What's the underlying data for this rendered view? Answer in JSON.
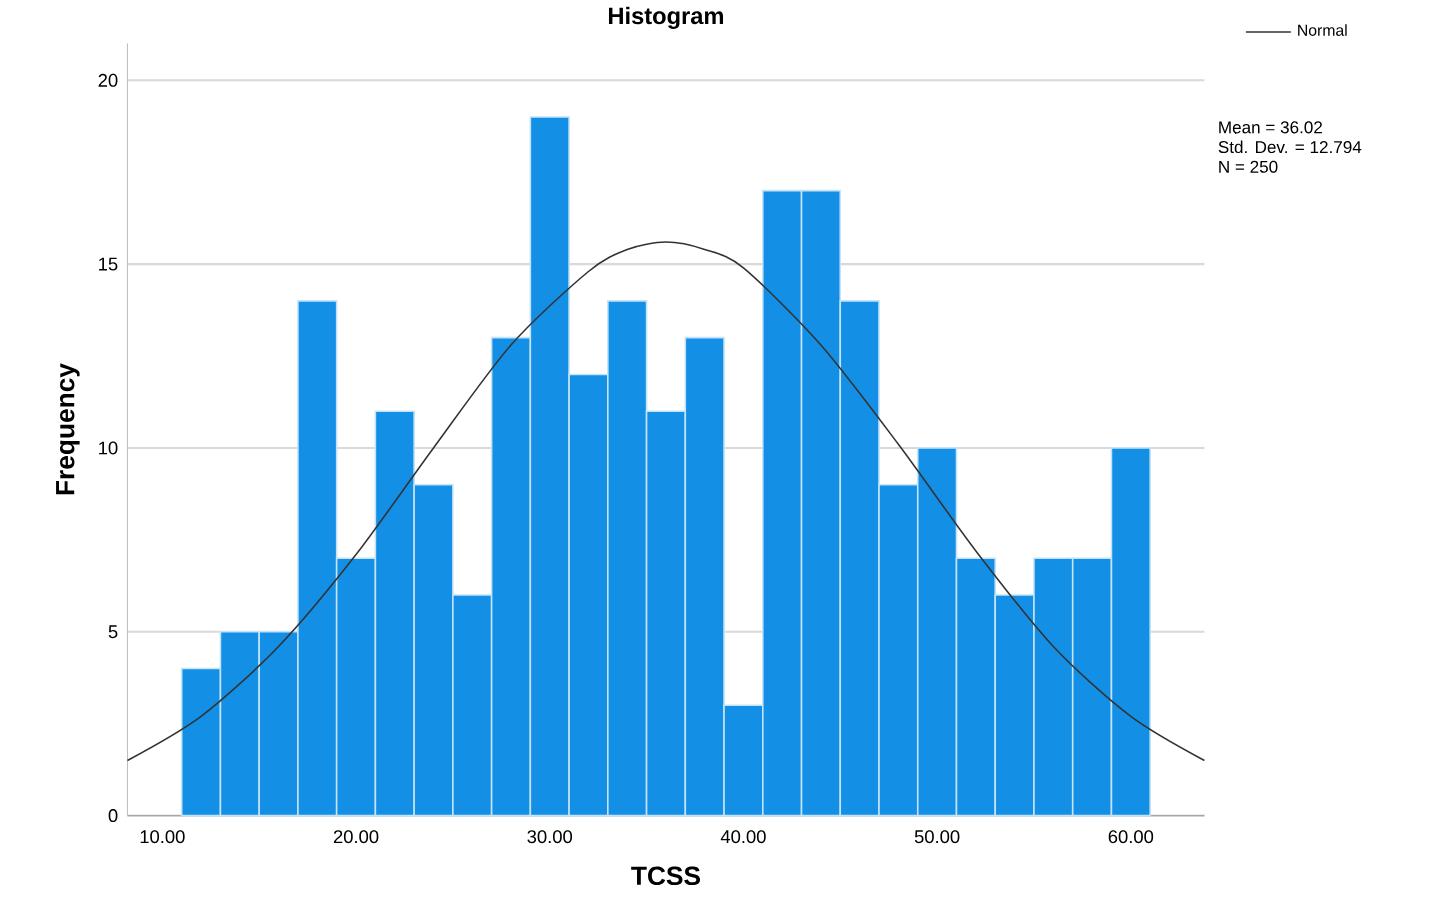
{
  "chart_data": {
    "type": "histogram",
    "title": "Histogram",
    "xlabel": "TCSS",
    "ylabel": "Frequency",
    "bins": [
      11,
      13,
      15,
      17,
      19,
      21,
      23,
      25,
      27,
      29,
      31,
      33,
      35,
      37,
      39,
      41,
      43,
      45,
      47,
      49,
      51,
      53,
      55,
      57,
      59,
      61
    ],
    "values": [
      4,
      5,
      5,
      14,
      7,
      11,
      9,
      6,
      13,
      19,
      12,
      14,
      11,
      13,
      3,
      17,
      17,
      14,
      9,
      10,
      7,
      6,
      7,
      7,
      10
    ],
    "color": "#138fe5",
    "series": [
      {
        "name": "Normal",
        "type": "line",
        "color": "#333333",
        "x": [
          8.2,
          12,
          16,
          20,
          24,
          28,
          32,
          34,
          36,
          38,
          40,
          44,
          48,
          52,
          56,
          60,
          63.8
        ],
        "values": [
          1.5,
          2.7,
          4.6,
          7.1,
          10.0,
          12.8,
          14.8,
          15.4,
          15.6,
          15.4,
          14.9,
          12.8,
          10.1,
          7.2,
          4.6,
          2.7,
          1.5
        ]
      }
    ],
    "xlim": [
      8.2,
      63.8
    ],
    "ylim": [
      0,
      21
    ],
    "xticks": [
      {
        "value": 10,
        "label": "10.00"
      },
      {
        "value": 20,
        "label": "20.00"
      },
      {
        "value": 30,
        "label": "30.00"
      },
      {
        "value": 40,
        "label": "40.00"
      },
      {
        "value": 50,
        "label": "50.00"
      },
      {
        "value": 60,
        "label": "60.00"
      }
    ],
    "yticks": [
      0,
      5,
      10,
      15,
      20
    ],
    "grid": "y",
    "legend": "top right",
    "annotations": [
      "Mean = 36.02",
      "Std. Dev. = 12.794",
      "N = 250"
    ]
  }
}
